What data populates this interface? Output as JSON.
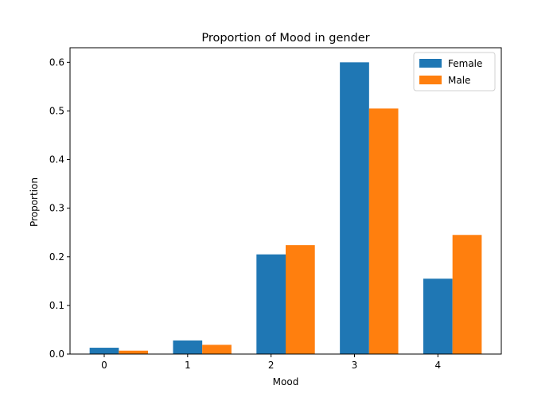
{
  "chart_data": {
    "type": "bar",
    "title": "Proportion of Mood in gender",
    "xlabel": "Mood",
    "ylabel": "Proportion",
    "categories": [
      "0",
      "1",
      "2",
      "3",
      "4"
    ],
    "series": [
      {
        "name": "Female",
        "color": "#1f77b4",
        "values": [
          0.013,
          0.028,
          0.205,
          0.6,
          0.155
        ]
      },
      {
        "name": "Male",
        "color": "#ff7f0e",
        "values": [
          0.007,
          0.019,
          0.224,
          0.505,
          0.245
        ]
      }
    ],
    "ylim": [
      0,
      0.63
    ],
    "yticks": [
      0.0,
      0.1,
      0.2,
      0.3,
      0.4,
      0.5,
      0.6
    ],
    "ytick_labels": [
      "0.0",
      "0.1",
      "0.2",
      "0.3",
      "0.4",
      "0.5",
      "0.6"
    ],
    "grid": false,
    "legend_position": "top-right"
  }
}
